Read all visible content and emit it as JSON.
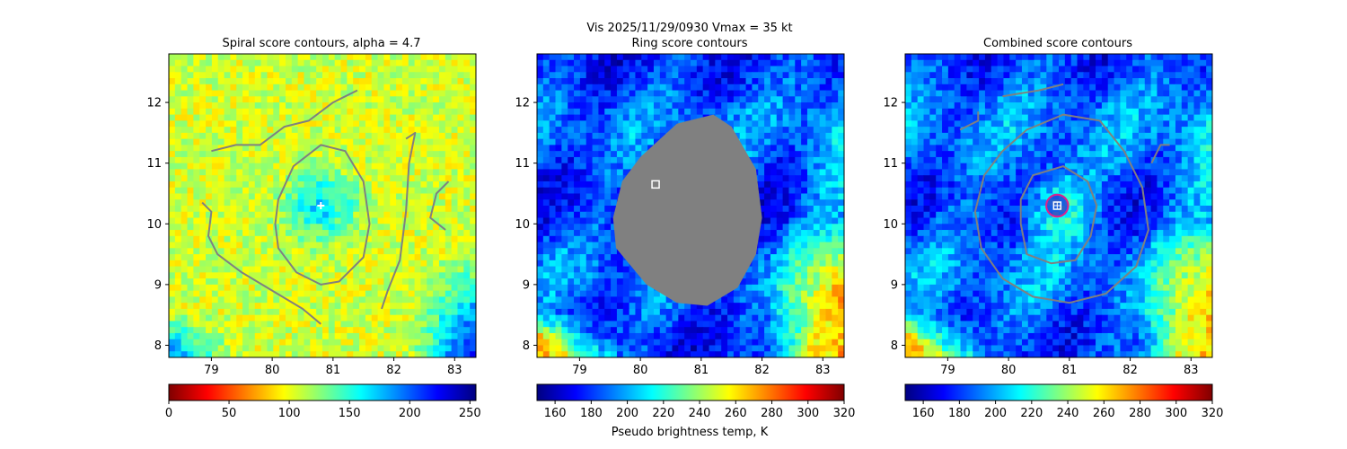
{
  "suptitle": {
    "line1": "Vis  2025/11/29/0930    Vmax = 35 kt",
    "line2": "Ring score contours"
  },
  "colorbar_xlabel": "Pseudo brightness temp, K",
  "colors": {
    "contour": "#808080",
    "marker": "#ffffff",
    "circle": "#e0208c",
    "center_square": "#1e2bd6",
    "mask": "#808080"
  },
  "chart_data": [
    {
      "type": "heatmap",
      "title": "Spiral score contours, alpha =  4.7",
      "xlim": [
        78.3,
        83.35
      ],
      "ylim": [
        7.8,
        12.8
      ],
      "xticks": [
        "79",
        "80",
        "81",
        "82",
        "83"
      ],
      "yticks": [
        "8",
        "9",
        "10",
        "11",
        "12"
      ],
      "xtick_values": [
        79,
        80,
        81,
        82,
        83
      ],
      "ytick_values": [
        8,
        9,
        10,
        11,
        12
      ],
      "colormap": "jet",
      "colorbar": {
        "min": 0,
        "max": 255,
        "ticks": [
          "0",
          "50",
          "100",
          "150",
          "200",
          "250"
        ],
        "tick_values": [
          0,
          50,
          100,
          150,
          200,
          250
        ],
        "reversed": true
      },
      "field": {
        "base": 0.58,
        "core": 0.35,
        "corner": 0.15,
        "seed": 11
      },
      "marker": {
        "symbol": "plus",
        "x": 80.8,
        "y": 10.3
      },
      "contours": [
        {
          "name": "inner-loop",
          "closed": true,
          "points": [
            [
              80.35,
              10.95
            ],
            [
              80.8,
              11.3
            ],
            [
              81.2,
              11.2
            ],
            [
              81.5,
              10.7
            ],
            [
              81.6,
              10.0
            ],
            [
              81.5,
              9.45
            ],
            [
              81.1,
              9.05
            ],
            [
              80.8,
              9.0
            ],
            [
              80.4,
              9.2
            ],
            [
              80.1,
              9.6
            ],
            [
              80.05,
              10.0
            ],
            [
              80.1,
              10.4
            ],
            [
              80.35,
              10.95
            ]
          ]
        },
        {
          "name": "spiral-arm-top",
          "closed": false,
          "points": [
            [
              79.0,
              11.2
            ],
            [
              79.4,
              11.3
            ],
            [
              79.8,
              11.3
            ],
            [
              80.2,
              11.6
            ],
            [
              80.6,
              11.7
            ],
            [
              81.0,
              12.0
            ],
            [
              81.4,
              12.2
            ]
          ]
        },
        {
          "name": "spiral-arm-right",
          "closed": false,
          "points": [
            [
              82.2,
              11.4
            ],
            [
              82.35,
              11.5
            ],
            [
              82.25,
              11.0
            ],
            [
              82.2,
              10.2
            ],
            [
              82.1,
              9.4
            ],
            [
              81.9,
              8.9
            ],
            [
              81.8,
              8.6
            ]
          ]
        },
        {
          "name": "spiral-arm-left",
          "closed": false,
          "points": [
            [
              78.85,
              10.35
            ],
            [
              79.0,
              10.2
            ],
            [
              78.95,
              9.8
            ],
            [
              79.1,
              9.5
            ],
            [
              79.5,
              9.2
            ],
            [
              80.0,
              8.9
            ],
            [
              80.5,
              8.6
            ],
            [
              80.8,
              8.35
            ]
          ]
        },
        {
          "name": "spiral-arm-east",
          "closed": false,
          "points": [
            [
              82.9,
              10.7
            ],
            [
              82.7,
              10.5
            ],
            [
              82.6,
              10.1
            ],
            [
              82.85,
              9.9
            ]
          ]
        }
      ]
    },
    {
      "type": "heatmap",
      "title": "Ring score contours",
      "xlim": [
        78.3,
        83.35
      ],
      "ylim": [
        7.8,
        12.8
      ],
      "xticks": [
        "79",
        "80",
        "81",
        "82",
        "83"
      ],
      "yticks": [
        "8",
        "9",
        "10",
        "11",
        "12"
      ],
      "xtick_values": [
        79,
        80,
        81,
        82,
        83
      ],
      "ytick_values": [
        8,
        9,
        10,
        11,
        12
      ],
      "colormap": "jet",
      "colorbar": {
        "min": 150,
        "max": 320,
        "ticks": [
          "160",
          "180",
          "200",
          "220",
          "240",
          "260",
          "280",
          "300",
          "320"
        ],
        "tick_values": [
          160,
          180,
          200,
          220,
          240,
          260,
          280,
          300,
          320
        ],
        "reversed": false
      },
      "field": {
        "base": 0.2,
        "core": 0.0,
        "corner": 0.72,
        "seed": 23
      },
      "mask_region": {
        "points": [
          [
            80.0,
            11.1
          ],
          [
            80.6,
            11.65
          ],
          [
            81.2,
            11.8
          ],
          [
            81.5,
            11.6
          ],
          [
            81.9,
            10.9
          ],
          [
            82.0,
            10.1
          ],
          [
            81.9,
            9.5
          ],
          [
            81.6,
            8.95
          ],
          [
            81.1,
            8.65
          ],
          [
            80.6,
            8.7
          ],
          [
            80.1,
            9.0
          ],
          [
            79.6,
            9.6
          ],
          [
            79.55,
            10.1
          ],
          [
            79.7,
            10.7
          ],
          [
            80.0,
            11.1
          ]
        ]
      },
      "marker": {
        "symbol": "square",
        "x": 80.25,
        "y": 10.65
      }
    },
    {
      "type": "heatmap",
      "title": "Combined score contours",
      "xlim": [
        78.3,
        83.35
      ],
      "ylim": [
        7.8,
        12.8
      ],
      "xticks": [
        "79",
        "80",
        "81",
        "82",
        "83"
      ],
      "yticks": [
        "8",
        "9",
        "10",
        "11",
        "12"
      ],
      "xtick_values": [
        79,
        80,
        81,
        82,
        83
      ],
      "ytick_values": [
        8,
        9,
        10,
        11,
        12
      ],
      "colormap": "jet",
      "colorbar": {
        "min": 150,
        "max": 320,
        "ticks": [
          "160",
          "180",
          "200",
          "220",
          "240",
          "260",
          "280",
          "300",
          "320"
        ],
        "tick_values": [
          160,
          180,
          200,
          220,
          240,
          260,
          280,
          300,
          320
        ],
        "reversed": false
      },
      "field": {
        "base": 0.22,
        "core": 0.45,
        "corner": 0.7,
        "seed": 37
      },
      "marker": {
        "symbol": "square-plus",
        "x": 80.8,
        "y": 10.3
      },
      "center_circle": {
        "x": 80.8,
        "y": 10.3,
        "radius_deg": 0.18
      },
      "contours": [
        {
          "name": "inner-ring",
          "closed": true,
          "points": [
            [
              80.4,
              10.8
            ],
            [
              80.9,
              10.95
            ],
            [
              81.3,
              10.7
            ],
            [
              81.45,
              10.3
            ],
            [
              81.35,
              9.8
            ],
            [
              81.1,
              9.4
            ],
            [
              80.7,
              9.35
            ],
            [
              80.3,
              9.5
            ],
            [
              80.2,
              10.0
            ],
            [
              80.2,
              10.4
            ],
            [
              80.4,
              10.8
            ]
          ]
        },
        {
          "name": "outer-ring",
          "closed": true,
          "points": [
            [
              80.3,
              11.55
            ],
            [
              80.9,
              11.8
            ],
            [
              81.5,
              11.7
            ],
            [
              81.9,
              11.2
            ],
            [
              82.2,
              10.6
            ],
            [
              82.3,
              9.9
            ],
            [
              82.1,
              9.3
            ],
            [
              81.6,
              8.85
            ],
            [
              81.0,
              8.7
            ],
            [
              80.4,
              8.8
            ],
            [
              79.9,
              9.1
            ],
            [
              79.55,
              9.6
            ],
            [
              79.45,
              10.2
            ],
            [
              79.6,
              10.8
            ],
            [
              79.9,
              11.2
            ],
            [
              80.3,
              11.55
            ]
          ]
        },
        {
          "name": "arm-top",
          "closed": false,
          "points": [
            [
              79.9,
              12.1
            ],
            [
              80.2,
              12.15
            ],
            [
              80.5,
              12.2
            ],
            [
              80.9,
              12.3
            ]
          ]
        },
        {
          "name": "arm-left",
          "closed": false,
          "points": [
            [
              79.2,
              11.55
            ],
            [
              79.5,
              11.7
            ],
            [
              79.5,
              11.85
            ]
          ]
        },
        {
          "name": "arm-right",
          "closed": false,
          "points": [
            [
              82.35,
              11.0
            ],
            [
              82.45,
              11.2
            ],
            [
              82.5,
              11.3
            ],
            [
              82.65,
              11.3
            ]
          ]
        }
      ]
    }
  ]
}
